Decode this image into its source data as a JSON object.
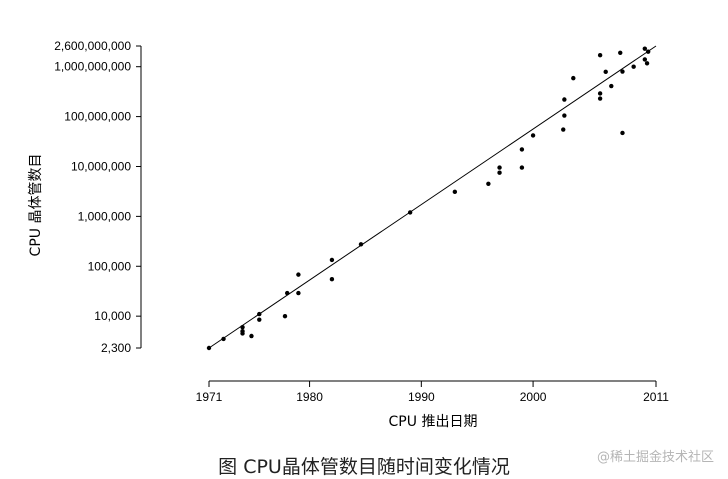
{
  "caption": "图 CPU晶体管数目随时间变化情况",
  "watermark": "@稀土掘金技术社区",
  "chart_data": {
    "type": "scatter",
    "scale": {
      "x": "linear",
      "y": "log"
    },
    "xlabel": "CPU 推出日期",
    "ylabel": "CPU 晶体管数目",
    "xlim": [
      1971,
      2011
    ],
    "ylim": [
      2300,
      2600000000
    ],
    "x_ticks": [
      1971,
      1980,
      1990,
      2000,
      2011
    ],
    "x_tick_labels": [
      "1971",
      "1980",
      "1990",
      "2000",
      "2011"
    ],
    "y_ticks": [
      2300,
      10000,
      100000,
      1000000,
      10000000,
      100000000,
      1000000000,
      2600000000
    ],
    "y_tick_labels": [
      "2,300",
      "10,000",
      "100,000",
      "1,000,000",
      "10,000,000",
      "100,000,000",
      "1,000,000,000",
      "2,600,000,000"
    ],
    "trend_line": {
      "from": [
        1971,
        2300
      ],
      "to": [
        2011,
        2600000000
      ]
    },
    "series": [
      {
        "marker_color": "#000000",
        "points": [
          [
            1971,
            2300
          ],
          [
            1972.3,
            3500
          ],
          [
            1974,
            4500
          ],
          [
            1974,
            5000
          ],
          [
            1974,
            6000
          ],
          [
            1974.8,
            4000
          ],
          [
            1975.5,
            8500
          ],
          [
            1975.5,
            11000
          ],
          [
            1977.8,
            10000
          ],
          [
            1978,
            29000
          ],
          [
            1979,
            68000
          ],
          [
            1979,
            29000
          ],
          [
            1982,
            134000
          ],
          [
            1982,
            55000
          ],
          [
            1984.6,
            275000
          ],
          [
            1989,
            1200000
          ],
          [
            1993,
            3100000
          ],
          [
            1996,
            4500000
          ],
          [
            1997,
            7500000
          ],
          [
            1997,
            9500000
          ],
          [
            1999,
            9500000
          ],
          [
            1999,
            22000000
          ],
          [
            2000,
            42000000
          ],
          [
            2002.7,
            55000000
          ],
          [
            2002.8,
            220000000
          ],
          [
            2002.8,
            105000000
          ],
          [
            2003.6,
            590000000
          ],
          [
            2006,
            230000000
          ],
          [
            2006,
            291000000
          ],
          [
            2006,
            1700000000
          ],
          [
            2006.5,
            789000000
          ],
          [
            2007,
            410000000
          ],
          [
            2007.8,
            1900000000
          ],
          [
            2008,
            800000000
          ],
          [
            2008,
            47000000
          ],
          [
            2009,
            1000000000
          ],
          [
            2010,
            1400000000
          ],
          [
            2010,
            2300000000
          ],
          [
            2010.2,
            1170000000
          ],
          [
            2010.3,
            2000000000
          ]
        ]
      }
    ]
  }
}
